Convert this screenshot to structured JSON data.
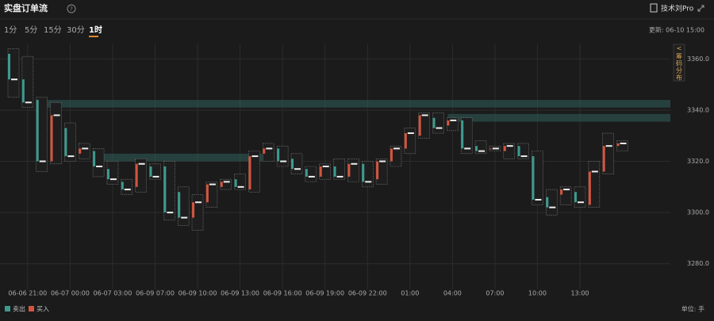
{
  "header": {
    "title": "实盘订单流",
    "help": "?",
    "account": "技术刘Pro",
    "tabs": [
      "1分",
      "5分",
      "15分",
      "30分",
      "1时"
    ],
    "active_tab": 4,
    "updated": "更新: 06-10 15:00",
    "side_panel": "筹码分布",
    "unit": "单位: 手"
  },
  "chart_data": {
    "type": "candlestick",
    "legend": [
      {
        "name": "卖出",
        "color": "#3d9a8f"
      },
      {
        "name": "买入",
        "color": "#d4553f"
      }
    ],
    "categories": [
      null,
      "06-06 21:00",
      null,
      null,
      "06-07 00:00",
      null,
      null,
      "06-07 03:00",
      null,
      null,
      "06-09 07:00",
      null,
      null,
      "06-09 10:00",
      null,
      null,
      "06-09 13:00",
      null,
      null,
      "06-09 16:00",
      null,
      null,
      "06-09 19:00",
      null,
      null,
      "06-09 22:00",
      null,
      null,
      "01:00",
      null,
      null,
      "04:00",
      null,
      null,
      "07:00",
      null,
      null,
      "10:00",
      null,
      null,
      "13:00",
      null,
      null,
      null
    ],
    "open": [
      3362,
      3352,
      3344,
      3320,
      3333,
      3323,
      3324,
      3317,
      3312,
      3310,
      3318,
      3318,
      3308,
      3298,
      3304,
      3310,
      3313,
      3309,
      3323,
      3325,
      3321,
      3317,
      3314,
      3318,
      3314,
      3319,
      3313,
      3320,
      3325,
      3330,
      3337,
      3334,
      3336,
      3326,
      3325,
      3324,
      3326,
      3322,
      3306,
      3307,
      3308,
      3303,
      3316,
      3326
    ],
    "high": [
      3364,
      3361,
      3345,
      3343,
      3335,
      3327,
      3325,
      3320,
      3313,
      3321,
      3319,
      3320,
      3310,
      3307,
      3312,
      3313,
      3315,
      3324,
      3327,
      3326,
      3323,
      3318,
      3319,
      3321,
      3321,
      3320,
      3321,
      3326,
      3333,
      3339,
      3339,
      3337,
      3337,
      3328,
      3326,
      3327,
      3327,
      3324,
      3309,
      3310,
      3310,
      3320,
      3331,
      3328
    ],
    "low": [
      3345,
      3341,
      3316,
      3319,
      3320,
      3321,
      3314,
      3311,
      3307,
      3308,
      3313,
      3297,
      3295,
      3293,
      3302,
      3309,
      3309,
      3308,
      3320,
      3318,
      3315,
      3312,
      3313,
      3313,
      3312,
      3310,
      3311,
      3318,
      3323,
      3329,
      3331,
      3332,
      3323,
      3323,
      3324,
      3321,
      3321,
      3303,
      3299,
      3303,
      3302,
      3302,
      3315,
      3324
    ],
    "close": [
      3352,
      3343,
      3320,
      3338,
      3322,
      3325,
      3318,
      3313,
      3309,
      3319,
      3314,
      3300,
      3298,
      3304,
      3311,
      3312,
      3310,
      3322,
      3325,
      3320,
      3317,
      3314,
      3318,
      3314,
      3319,
      3312,
      3320,
      3325,
      3331,
      3338,
      3333,
      3336,
      3325,
      3324,
      3325,
      3326,
      3322,
      3305,
      3302,
      3309,
      3304,
      3316,
      3326,
      3327
    ],
    "zones": [
      {
        "start": 2,
        "end": 43,
        "low": 3341,
        "high": 3344
      },
      {
        "start": 31,
        "end": 43,
        "low": 3335.5,
        "high": 3338.5
      },
      {
        "start": 6,
        "end": 18,
        "low": 3320,
        "high": 3323
      }
    ],
    "ylim": [
      3270,
      3366
    ],
    "yticks": [
      {
        "value": 3280,
        "label": "3280.0"
      },
      {
        "value": 3300,
        "label": "3300.0"
      },
      {
        "value": 3320,
        "label": "3320.0"
      },
      {
        "value": 3340,
        "label": "3340.0"
      },
      {
        "value": 3360,
        "label": "3360.0"
      }
    ],
    "grid": true
  }
}
